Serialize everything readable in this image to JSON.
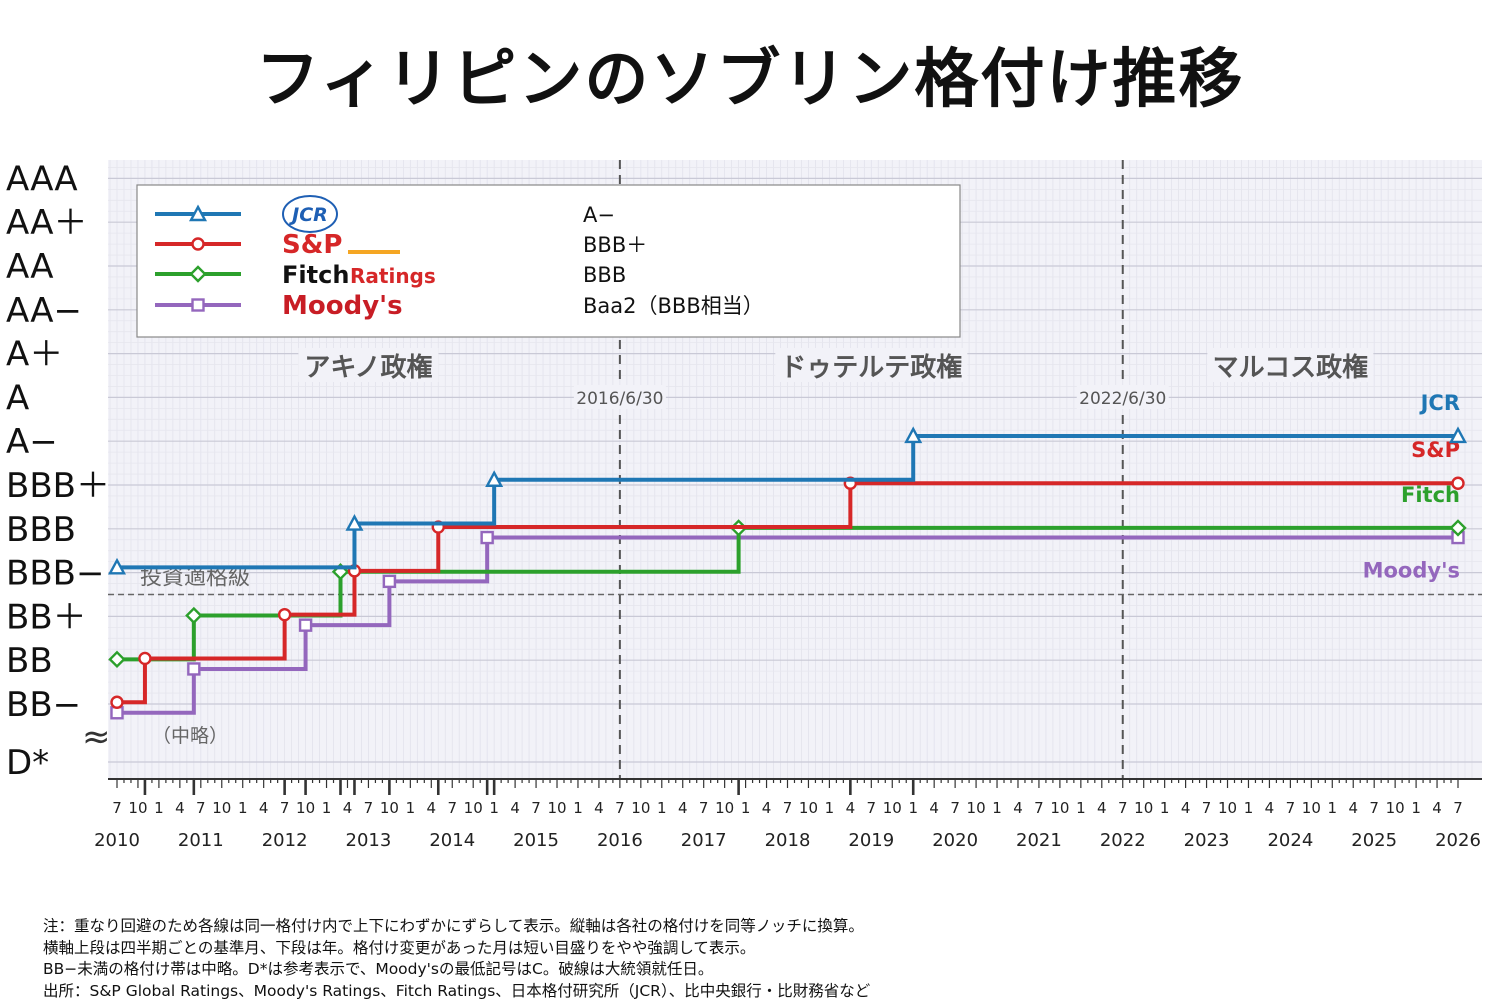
{
  "title": "フィリピンのソブリン格付け推移",
  "colors": {
    "jcr": "#1f77b4",
    "sp": "#d62728",
    "fitch": "#2ca02c",
    "moodys": "#9467bd",
    "sp_bar": "#f5a623",
    "moodys_text": "#c81d25",
    "plot_bg": "#f2f2f8"
  },
  "chart_data": {
    "type": "line",
    "step": "post",
    "y_categories": [
      "D*",
      "BB−",
      "BB",
      "BB＋",
      "BBB−",
      "BBB",
      "BBB＋",
      "A−",
      "A",
      "A＋",
      "AA−",
      "AA",
      "AA＋",
      "AAA"
    ],
    "y_axis_labels": [
      "AAA",
      "AA＋",
      "AA",
      "AA−",
      "A＋",
      "A",
      "A−",
      "BBB＋",
      "BBB",
      "BBB−",
      "BB＋",
      "BB",
      "BB−",
      "D*"
    ],
    "axis_break_symbol": "≈",
    "axis_break_label": "（中略）",
    "x_range": [
      "2010-07",
      "2026-07"
    ],
    "year_labels": [
      "2010",
      "2011",
      "2012",
      "2013",
      "2014",
      "2015",
      "2016",
      "2017",
      "2018",
      "2019",
      "2020",
      "2021",
      "2022",
      "2023",
      "2024",
      "2025",
      "2026"
    ],
    "quarter_labels": [
      "1",
      "4",
      "7",
      "10"
    ],
    "investment_grade_label": "投資適格級",
    "investment_grade_threshold": "BBB−",
    "vlines": [
      {
        "date": "2016-07",
        "label": "2016/6/30"
      },
      {
        "date": "2022-07",
        "label": "2022/6/30"
      }
    ],
    "eras": [
      {
        "label": "アキノ政権",
        "center": "2013-07"
      },
      {
        "label": "ドゥテルテ政権",
        "center": "2019-07"
      },
      {
        "label": "マルコス政権",
        "center": "2024-07"
      }
    ],
    "series": [
      {
        "key": "jcr",
        "name": "JCR",
        "marker": "triangle",
        "offset": 0.12,
        "current": "A−",
        "points": [
          [
            "2010-07",
            "BBB−"
          ],
          [
            "2013-05",
            "BBB"
          ],
          [
            "2015-01",
            "BBB＋"
          ],
          [
            "2020-01",
            "A−"
          ],
          [
            "2026-07",
            "A−"
          ]
        ]
      },
      {
        "key": "sp",
        "name": "S&P",
        "marker": "circle",
        "offset": 0.04,
        "current": "BBB＋",
        "points": [
          [
            "2010-07",
            "BB−"
          ],
          [
            "2010-11",
            "BB"
          ],
          [
            "2012-07",
            "BB＋"
          ],
          [
            "2013-05",
            "BBB−"
          ],
          [
            "2014-05",
            "BBB"
          ],
          [
            "2019-04",
            "BBB＋"
          ],
          [
            "2026-07",
            "BBB＋"
          ]
        ]
      },
      {
        "key": "fitch",
        "name": "Fitch",
        "marker": "diamond",
        "offset": 0.02,
        "current": "BBB",
        "points": [
          [
            "2010-07",
            "BB"
          ],
          [
            "2011-06",
            "BB＋"
          ],
          [
            "2013-03",
            "BBB−"
          ],
          [
            "2017-12",
            "BBB"
          ],
          [
            "2026-07",
            "BBB"
          ]
        ]
      },
      {
        "key": "moodys",
        "name": "Moody's",
        "marker": "square",
        "offset": -0.2,
        "current": "Baa2（BBB相当）",
        "points": [
          [
            "2010-07",
            "BB−"
          ],
          [
            "2011-06",
            "BB"
          ],
          [
            "2012-10",
            "BB＋"
          ],
          [
            "2013-10",
            "BBB−"
          ],
          [
            "2014-12",
            "BBB"
          ],
          [
            "2026-07",
            "BBB"
          ]
        ]
      }
    ]
  },
  "legend": {
    "jcr_logo": "JCR",
    "sp_logo": "S&P",
    "fitch_logo": "Fitch",
    "fitch_logo_sub": "Ratings",
    "moodys_logo": "Moody's"
  },
  "notes": [
    "注：重なり回避のため各線は同一格付け内で上下にわずかにずらして表示。縦軸は各社の格付けを同等ノッチに換算。",
    "横軸上段は四半期ごとの基準月、下段は年。格付け変更があった月は短い目盛りをやや強調して表示。",
    "BB−未満の格付け帯は中略。D*は参考表示で、Moody'sの最低記号はC。破線は大統領就任日。",
    "出所：S&P Global Ratings、Moody's Ratings、Fitch Ratings、日本格付研究所（JCR）、比中央銀行・比財務省など"
  ]
}
